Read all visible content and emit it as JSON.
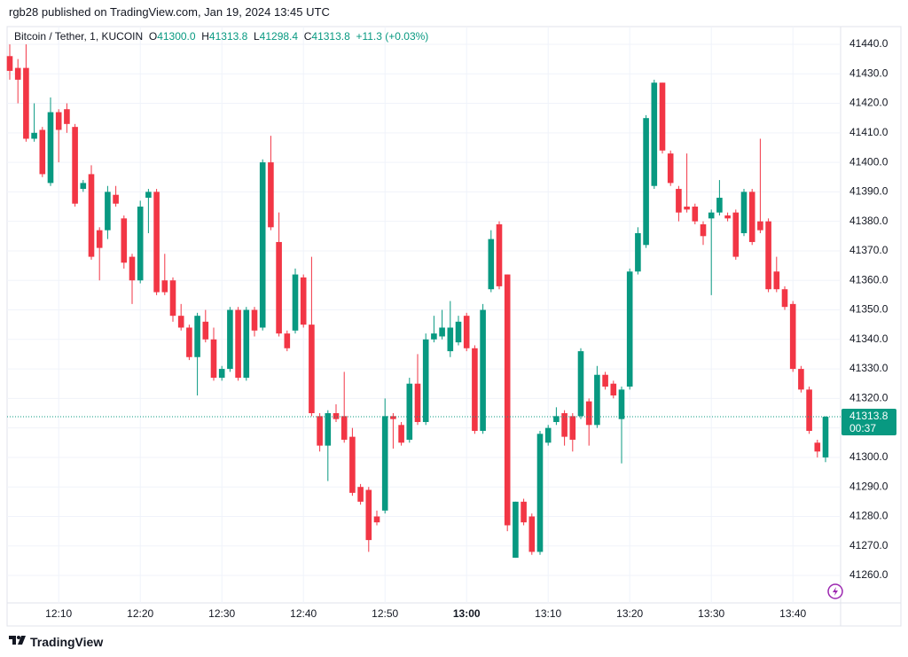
{
  "header": "rgb28 published on TradingView.com, Jan 19, 2024 13:45 UTC",
  "footer": "TradingView",
  "chart_data": {
    "type": "candlestick",
    "symbol": "Bitcoin / Tether, 1, KUCOIN",
    "legend": {
      "open_label": "O",
      "open": "41300.0",
      "high_label": "H",
      "high": "41313.8",
      "low_label": "L",
      "low": "41298.4",
      "close_label": "C",
      "close": "41313.8",
      "change": "+11.3 (+0.03%)"
    },
    "last_price": 41313.8,
    "countdown": "00:37",
    "up_color": "#089981",
    "down_color": "#f23645",
    "grid": true,
    "ylim": [
      41250.7,
      41446
    ],
    "yticks": [
      {
        "value": 41260,
        "label": "41260.0"
      },
      {
        "value": 41270,
        "label": "41270.0"
      },
      {
        "value": 41280,
        "label": "41280.0"
      },
      {
        "value": 41290,
        "label": "41290.0"
      },
      {
        "value": 41300,
        "label": "41300.0"
      },
      {
        "value": 41310,
        "label": "41310.0"
      },
      {
        "value": 41320,
        "label": "41320.0"
      },
      {
        "value": 41330,
        "label": "41330.0"
      },
      {
        "value": 41340,
        "label": "41340.0"
      },
      {
        "value": 41350,
        "label": "41350.0"
      },
      {
        "value": 41360,
        "label": "41360.0"
      },
      {
        "value": 41370,
        "label": "41370.0"
      },
      {
        "value": 41380,
        "label": "41380.0"
      },
      {
        "value": 41390,
        "label": "41390.0"
      },
      {
        "value": 41400,
        "label": "41400.0"
      },
      {
        "value": 41410,
        "label": "41410.0"
      },
      {
        "value": 41420,
        "label": "41420.0"
      },
      {
        "value": 41430,
        "label": "41430.0"
      },
      {
        "value": 41440,
        "label": "41440.0"
      }
    ],
    "categories": [
      null,
      null,
      null,
      null,
      null,
      null,
      "12:10",
      null,
      null,
      null,
      null,
      null,
      null,
      null,
      null,
      null,
      "12:20",
      null,
      null,
      null,
      null,
      null,
      null,
      null,
      null,
      null,
      "12:30",
      null,
      null,
      null,
      null,
      null,
      null,
      null,
      null,
      null,
      "12:40",
      null,
      null,
      null,
      null,
      null,
      null,
      null,
      null,
      null,
      "12:50",
      null,
      null,
      null,
      null,
      null,
      null,
      null,
      null,
      null,
      "13:00",
      null,
      null,
      null,
      null,
      null,
      null,
      null,
      null,
      null,
      "13:10",
      null,
      null,
      null,
      null,
      null,
      null,
      null,
      null,
      null,
      "13:20",
      null,
      null,
      null,
      null,
      null,
      null,
      null,
      null,
      null,
      "13:30",
      null,
      null,
      null,
      null,
      null,
      null,
      null,
      null,
      null,
      "13:40",
      null,
      null,
      null,
      null
    ],
    "open": [
      41436,
      41432,
      41432,
      41408,
      41411,
      41393,
      41417,
      41418,
      41412,
      41391,
      41396,
      41377,
      41377,
      41389,
      41381,
      41368,
      41360,
      41388,
      41390,
      41360,
      41360,
      41348,
      41344,
      41334,
      41346,
      41340,
      41327,
      41330,
      41350,
      41327,
      41350,
      41344,
      41400,
      41373,
      41342,
      41343,
      41361,
      41345,
      41314,
      41304,
      41315,
      41314,
      41307,
      41290,
      41289,
      41280,
      41282,
      41314,
      41311,
      41306,
      41325,
      41312,
      41340,
      41341,
      41336,
      41339,
      41348,
      41337,
      41309,
      41357,
      41379,
      41362,
      41266,
      41285,
      41280,
      41268,
      41305,
      41312,
      41315,
      41314,
      41314,
      41319,
      41311,
      41328,
      41325,
      41313,
      41324,
      41363,
      41372,
      41392,
      41427,
      41403,
      41391,
      41385,
      41385,
      41379,
      41381,
      41383,
      41382,
      41383,
      41376,
      41390,
      41380,
      41380,
      41363,
      41357,
      41352,
      41330,
      41323,
      41305,
      41300
    ],
    "high": [
      41440,
      41435,
      41440,
      41420,
      41412,
      41422,
      41418,
      41420,
      41413,
      41394,
      41399,
      41378,
      41392,
      41392,
      41382,
      41369,
      41387,
      41391,
      41391,
      41369,
      41361,
      41352,
      41345,
      41349,
      41350,
      41344,
      41331,
      41351,
      41351,
      41351,
      41351,
      41401,
      41409,
      41383,
      41343,
      41364,
      41362,
      41368,
      41315,
      41316,
      41318,
      41329,
      41310,
      41291,
      41290,
      41282,
      41320,
      41315,
      41312,
      41327,
      41335,
      41342,
      41348,
      41350,
      41353,
      41348,
      41349,
      41338,
      41352,
      41377,
      41380,
      41362,
      41285,
      41286,
      41281,
      41309,
      41311,
      41317,
      41316,
      41315,
      41337,
      41320,
      41331,
      41329,
      41326,
      41324,
      41364,
      41378,
      41416,
      41428,
      41427,
      41404,
      41392,
      41403,
      41386,
      41380,
      41384,
      41394,
      41383,
      41384,
      41391,
      41391,
      41408,
      41381,
      41368,
      41358,
      41353,
      41331,
      41324,
      41306,
      41314
    ],
    "low": [
      41428,
      41420,
      41407,
      41407,
      41395,
      41392,
      41400,
      41410,
      41385,
      41390,
      41367,
      41360,
      41374,
      41385,
      41364,
      41352,
      41359,
      41376,
      41355,
      41355,
      41346,
      41343,
      41333,
      41321,
      41339,
      41326,
      41326,
      41329,
      41326,
      41326,
      41341,
      41343,
      41377,
      41341,
      41336,
      41342,
      41344,
      41314,
      41302,
      41292,
      41312,
      41305,
      41287,
      41284,
      41268,
      41277,
      41281,
      41303,
      41304,
      41305,
      41311,
      41311,
      41339,
      41340,
      41334,
      41338,
      41336,
      41308,
      41308,
      41356,
      41357,
      41275,
      41266,
      41277,
      41267,
      41267,
      41304,
      41311,
      41304,
      41302,
      41313,
      41304,
      41310,
      41323,
      41320,
      41298,
      41323,
      41362,
      41371,
      41391,
      41403,
      41392,
      41380,
      41383,
      41379,
      41372,
      41355,
      41382,
      41380,
      41367,
      41375,
      41372,
      41376,
      41356,
      41356,
      41350,
      41329,
      41322,
      41308,
      41300,
      41298.4
    ],
    "close": [
      41431,
      41428,
      41408,
      41410,
      41396,
      41417,
      41411,
      41413,
      41386,
      41393,
      41368,
      41371,
      41390,
      41386,
      41366,
      41360,
      41385,
      41390,
      41356,
      41356,
      41348,
      41344,
      41334,
      41348,
      41340,
      41327,
      41330,
      41350,
      41327,
      41350,
      41343,
      41400,
      41378,
      41342,
      41337,
      41362,
      41345,
      41315,
      41304,
      41315,
      41313,
      41306,
      41288,
      41285,
      41272,
      41278,
      41314,
      41313,
      41305,
      41325,
      41312,
      41340,
      41342,
      41344,
      41344,
      41346,
      41337,
      41309,
      41350,
      41374,
      41358,
      41277,
      41285,
      41278,
      41268,
      41308,
      41310,
      41314,
      41307,
      41306,
      41336,
      41311,
      41328,
      41324,
      41321,
      41323,
      41363,
      41376,
      41415,
      41427,
      41404,
      41393,
      41383,
      41384,
      41380,
      41375,
      41383,
      41388,
      41381,
      41368,
      41390,
      41373,
      41377,
      41357,
      41357,
      41351,
      41330,
      41323,
      41309,
      41302,
      41313.8
    ]
  }
}
